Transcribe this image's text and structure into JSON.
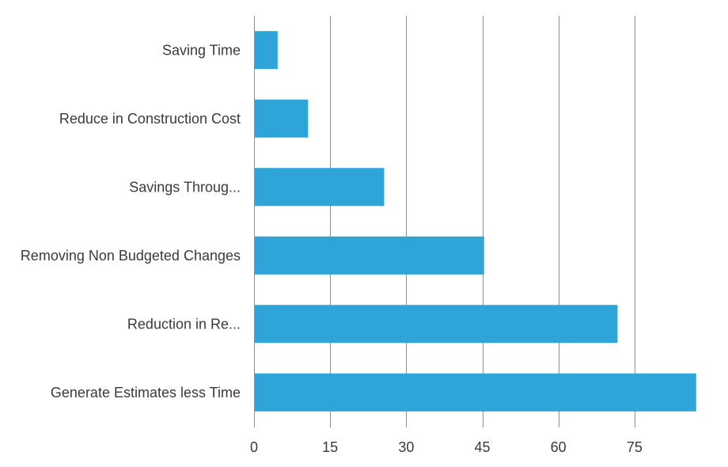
{
  "chart_data": {
    "type": "bar",
    "orientation": "horizontal",
    "title": "",
    "xlabel": "",
    "ylabel": "",
    "categories": [
      "Saving Time",
      "Reduce in Construction Cost",
      "Savings Throug...",
      "Removing Non Budgeted Changes",
      "Reduction in Re...",
      "Generate Estimates less Time"
    ],
    "values": [
      4.5,
      10.5,
      25.5,
      45.2,
      71.5,
      87.0
    ],
    "xlim": [
      0,
      90
    ],
    "xticks": [
      0,
      15,
      30,
      45,
      60,
      75
    ],
    "grid": true,
    "legend": "none",
    "colors": {
      "bar": "#2ea4d8",
      "grid": "#8a8f99",
      "text": "#3a3a3a"
    }
  }
}
